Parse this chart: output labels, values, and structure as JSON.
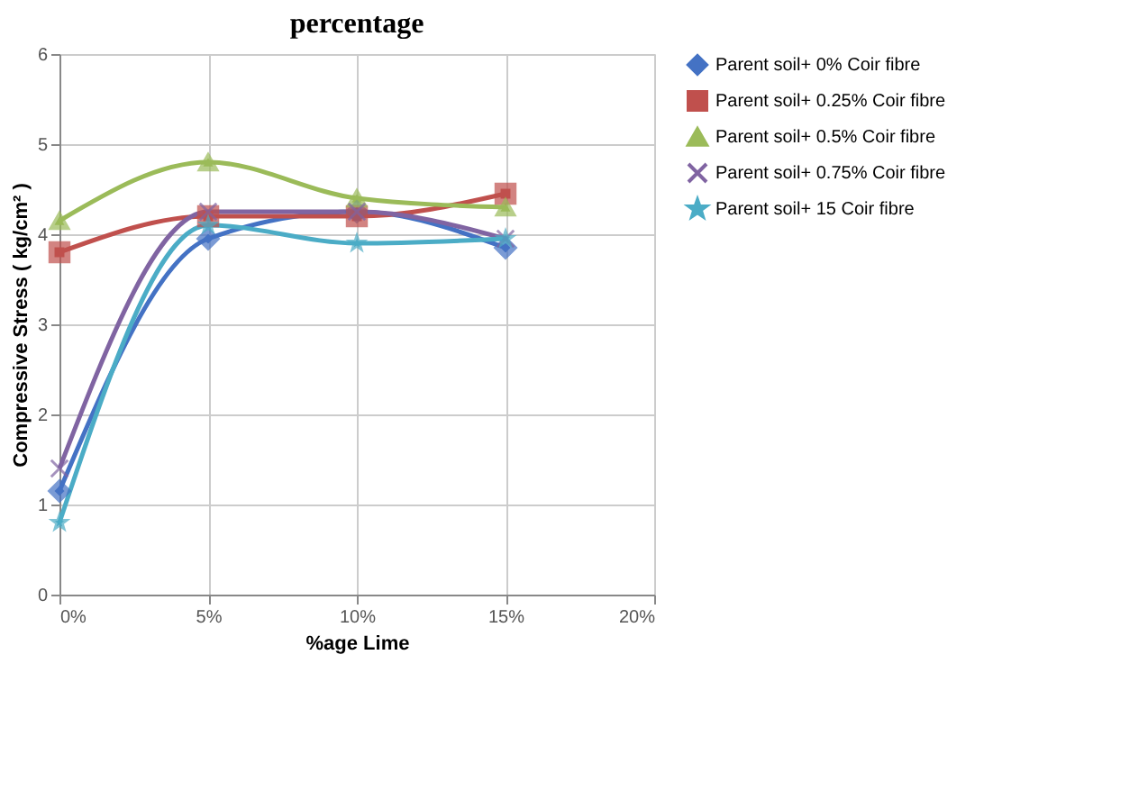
{
  "chart_data": {
    "type": "line",
    "title": "percentage",
    "xlabel": "%age Lime",
    "ylabel": "Compressive Stress ( kg/cm² )",
    "x": [
      0,
      5,
      10,
      15
    ],
    "xlim": [
      0,
      20
    ],
    "xticks": [
      {
        "value": 0,
        "label": "0%"
      },
      {
        "value": 5,
        "label": "5%"
      },
      {
        "value": 10,
        "label": "10%"
      },
      {
        "value": 15,
        "label": "15%"
      },
      {
        "value": 20,
        "label": "20%"
      }
    ],
    "ylim": [
      0,
      6
    ],
    "yticks": [
      0,
      1,
      2,
      3,
      4,
      5,
      6
    ],
    "grid": true,
    "legend": "right",
    "series": [
      {
        "name": "Parent soil+ 0% Coir fibre",
        "color": "#4472c4",
        "marker": "diamond",
        "values": [
          1.15,
          3.95,
          4.25,
          3.85
        ]
      },
      {
        "name": "Parent soil+ 0.25% Coir fibre",
        "color": "#c0504d",
        "marker": "square",
        "values": [
          3.8,
          4.2,
          4.2,
          4.45
        ]
      },
      {
        "name": "Parent soil+ 0.5% Coir fibre",
        "color": "#9bbb59",
        "marker": "triangle",
        "values": [
          4.15,
          4.8,
          4.4,
          4.3
        ]
      },
      {
        "name": "Parent soil+ 0.75% Coir fibre",
        "color": "#8064a2",
        "marker": "cross",
        "values": [
          1.4,
          4.25,
          4.25,
          3.95
        ]
      },
      {
        "name": "Parent soil+ 15 Coir fibre",
        "color": "#4bacc6",
        "marker": "star",
        "values": [
          0.8,
          4.1,
          3.9,
          3.95
        ]
      }
    ]
  }
}
